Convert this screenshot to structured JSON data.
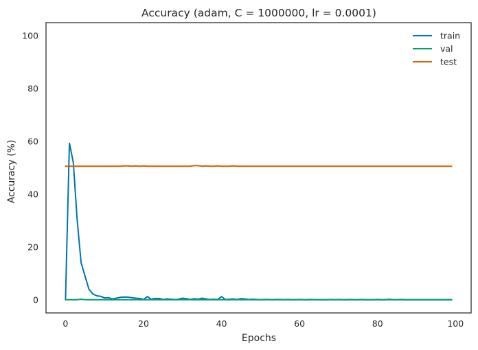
{
  "chart_data": {
    "type": "line",
    "title": "Accuracy (adam, C = 1000000, lr = 0.0001)",
    "xlabel": "Epochs",
    "ylabel": "Accuracy (%)",
    "xlim": [
      -5,
      104
    ],
    "ylim": [
      -5,
      105
    ],
    "xticks": [
      0,
      20,
      40,
      60,
      80,
      100
    ],
    "yticks": [
      0,
      20,
      40,
      60,
      80,
      100
    ],
    "grid": false,
    "legend_position": "top-right",
    "series": [
      {
        "name": "train",
        "color": "#0072b2",
        "x": [
          0,
          1,
          2,
          3,
          4,
          5,
          6,
          7,
          8,
          9,
          10,
          11,
          12,
          13,
          14,
          15,
          16,
          17,
          18,
          19,
          20,
          21,
          22,
          23,
          24,
          25,
          26,
          27,
          28,
          29,
          30,
          31,
          32,
          33,
          34,
          35,
          36,
          37,
          38,
          39,
          40,
          41,
          42,
          43,
          44,
          45,
          46,
          47,
          48,
          49,
          50,
          51,
          52,
          53,
          54,
          55,
          56,
          57,
          58,
          59,
          60,
          61,
          62,
          63,
          64,
          65,
          66,
          67,
          68,
          69,
          70,
          71,
          72,
          73,
          74,
          75,
          76,
          77,
          78,
          79,
          80,
          81,
          82,
          83,
          84,
          85,
          86,
          87,
          88,
          89,
          90,
          91,
          92,
          93,
          94,
          95,
          96,
          97,
          98,
          99
        ],
        "y": [
          0,
          59.3,
          52,
          30,
          14,
          9,
          4,
          2.2,
          1.5,
          1.3,
          0.7,
          0.8,
          0.3,
          0.6,
          0.9,
          1,
          1,
          0.8,
          0.6,
          0.5,
          0.1,
          1.2,
          0.2,
          0.5,
          0.5,
          0.1,
          0.3,
          0.2,
          0.1,
          0.2,
          0.6,
          0.4,
          0.1,
          0.4,
          0.2,
          0.6,
          0.3,
          0.1,
          0.2,
          0.1,
          1.2,
          0.1,
          0.2,
          0.3,
          0.1,
          0.4,
          0.3,
          0.1,
          0.2,
          0.1,
          0,
          0.1,
          0.1,
          0,
          0.1,
          0.1,
          0,
          0.1,
          0,
          0,
          0.1,
          0,
          0,
          0.1,
          0,
          0,
          0,
          0,
          0.1,
          0,
          0.1,
          0,
          0,
          0.1,
          0,
          0,
          0.1,
          0,
          0,
          0,
          0.1,
          0,
          0,
          0.2,
          0,
          0,
          0.1,
          0,
          0,
          0,
          0,
          0,
          0,
          0,
          0,
          0,
          0,
          0,
          0,
          0
        ]
      },
      {
        "name": "val",
        "color": "#009e73",
        "x": [
          0,
          1,
          2,
          3,
          4,
          5,
          6,
          7,
          8,
          9,
          10,
          11,
          12,
          13,
          14,
          15,
          16,
          17,
          18,
          19,
          20,
          21,
          22,
          23,
          24,
          25,
          26,
          27,
          28,
          29,
          30,
          31,
          32,
          33,
          34,
          35,
          36,
          37,
          38,
          39,
          40,
          41,
          42,
          43,
          44,
          45,
          46,
          47,
          48,
          49,
          50,
          51,
          52,
          53,
          54,
          55,
          56,
          57,
          58,
          59,
          60,
          61,
          62,
          63,
          64,
          65,
          66,
          67,
          68,
          69,
          70,
          71,
          72,
          73,
          74,
          75,
          76,
          77,
          78,
          79,
          80,
          81,
          82,
          83,
          84,
          85,
          86,
          87,
          88,
          89,
          90,
          91,
          92,
          93,
          94,
          95,
          96,
          97,
          98,
          99
        ],
        "y": [
          0,
          0,
          0,
          0,
          0.2,
          0,
          0,
          0,
          0,
          0,
          0,
          0,
          0,
          0,
          0,
          0,
          0,
          0,
          0,
          0,
          0,
          0,
          0,
          0,
          0,
          0,
          0,
          0,
          0,
          0,
          0,
          0,
          0,
          0,
          0,
          0,
          0,
          0,
          0,
          0,
          0,
          0,
          0,
          0,
          0,
          0,
          0,
          0,
          0,
          0,
          0,
          0,
          0,
          0,
          0,
          0,
          0,
          0,
          0,
          0,
          0,
          0,
          0,
          0,
          0,
          0,
          0,
          0,
          0,
          0,
          0,
          0,
          0,
          0,
          0,
          0,
          0,
          0,
          0,
          0,
          0,
          0,
          0,
          0,
          0,
          0,
          0,
          0,
          0,
          0,
          0,
          0,
          0,
          0,
          0,
          0,
          0,
          0,
          0,
          0
        ]
      },
      {
        "name": "test",
        "color": "#d55e00",
        "x": [
          0,
          1,
          2,
          3,
          4,
          5,
          6,
          7,
          8,
          9,
          10,
          11,
          12,
          13,
          14,
          15,
          16,
          17,
          18,
          19,
          20,
          21,
          22,
          23,
          24,
          25,
          26,
          27,
          28,
          29,
          30,
          31,
          32,
          33,
          34,
          35,
          36,
          37,
          38,
          39,
          40,
          41,
          42,
          43,
          44,
          45,
          46,
          47,
          48,
          49,
          50,
          51,
          52,
          53,
          54,
          55,
          56,
          57,
          58,
          59,
          60,
          61,
          62,
          63,
          64,
          65,
          66,
          67,
          68,
          69,
          70,
          71,
          72,
          73,
          74,
          75,
          76,
          77,
          78,
          79,
          80,
          81,
          82,
          83,
          84,
          85,
          86,
          87,
          88,
          89,
          90,
          91,
          92,
          93,
          94,
          95,
          96,
          97,
          98,
          99
        ],
        "y": [
          50.6,
          50.6,
          50.6,
          50.6,
          50.6,
          50.6,
          50.6,
          50.6,
          50.6,
          50.6,
          50.6,
          50.6,
          50.6,
          50.6,
          50.6,
          50.7,
          50.7,
          50.6,
          50.7,
          50.6,
          50.7,
          50.6,
          50.6,
          50.6,
          50.6,
          50.6,
          50.6,
          50.6,
          50.6,
          50.6,
          50.6,
          50.6,
          50.6,
          50.8,
          50.8,
          50.6,
          50.7,
          50.6,
          50.6,
          50.7,
          50.6,
          50.6,
          50.6,
          50.7,
          50.6,
          50.6,
          50.6,
          50.6,
          50.6,
          50.6,
          50.6,
          50.6,
          50.6,
          50.6,
          50.6,
          50.6,
          50.6,
          50.6,
          50.6,
          50.6,
          50.6,
          50.6,
          50.6,
          50.6,
          50.6,
          50.6,
          50.6,
          50.6,
          50.6,
          50.6,
          50.6,
          50.6,
          50.6,
          50.6,
          50.6,
          50.6,
          50.6,
          50.6,
          50.6,
          50.6,
          50.6,
          50.6,
          50.6,
          50.6,
          50.6,
          50.6,
          50.6,
          50.6,
          50.6,
          50.6,
          50.6,
          50.6,
          50.6,
          50.6,
          50.6,
          50.6,
          50.6,
          50.6,
          50.6,
          50.6
        ]
      }
    ]
  }
}
